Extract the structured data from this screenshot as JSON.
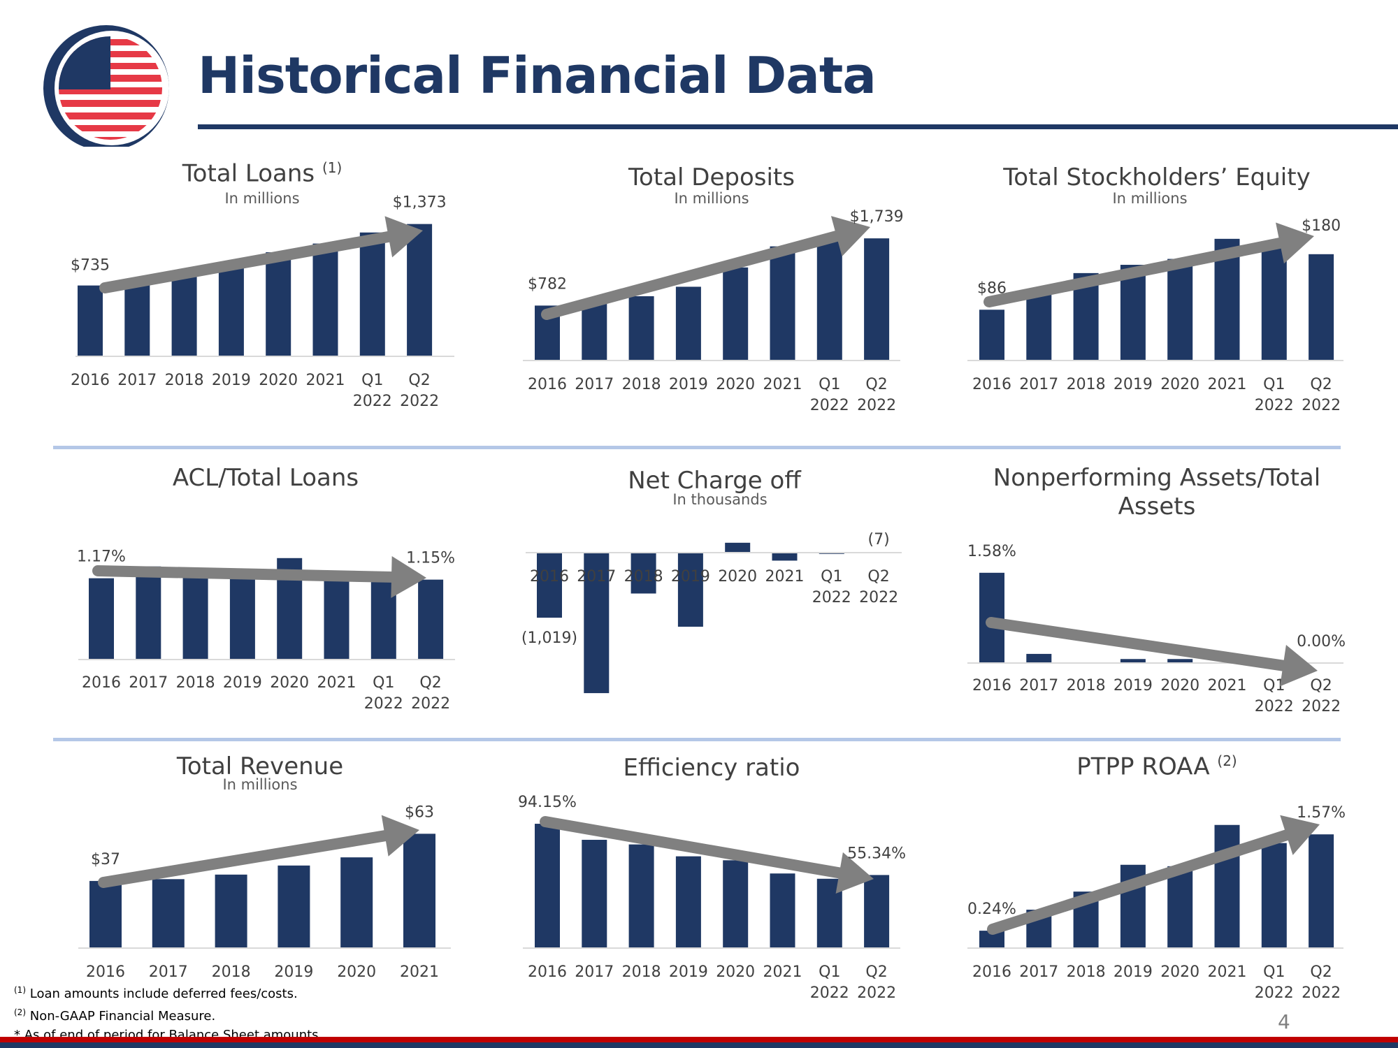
{
  "page": {
    "title": "Historical Financial Data",
    "page_number": "4",
    "colors": {
      "bar": "#1f3864",
      "arrow": "#808080",
      "accent_red": "#c00000",
      "separator": "#b4c7e7"
    }
  },
  "footnotes": [
    {
      "marker": "(1)",
      "text": "Loan amounts include deferred fees/costs."
    },
    {
      "marker": "(2)",
      "text": "Non-GAAP Financial Measure."
    },
    {
      "marker": "*",
      "text": "As of end of period for Balance Sheet amounts."
    }
  ],
  "chart_data": [
    {
      "id": "loans",
      "type": "bar",
      "title": "Total Loans",
      "title_note": "(1)",
      "subtitle": "In millions",
      "categories": [
        "2016",
        "2017",
        "2018",
        "2019",
        "2020",
        "2021",
        "Q1 2022",
        "Q2 2022"
      ],
      "values": [
        735,
        790,
        860,
        960,
        1080,
        1170,
        1285,
        1373
      ],
      "value_labels": [
        "$735",
        "",
        "",
        "",
        "",
        "",
        "",
        "$1,373"
      ],
      "ylim": [
        0,
        1450
      ],
      "trend_arrow": "up",
      "grid": false
    },
    {
      "id": "deposits",
      "type": "bar",
      "title": "Total Deposits",
      "subtitle": "In millions",
      "categories": [
        "2016",
        "2017",
        "2018",
        "2019",
        "2020",
        "2021",
        "Q1 2022",
        "Q2 2022"
      ],
      "values": [
        782,
        830,
        915,
        1050,
        1325,
        1625,
        1735,
        1739
      ],
      "value_labels": [
        "$782",
        "",
        "",
        "",
        "",
        "",
        "",
        "$1,739"
      ],
      "ylim": [
        0,
        1850
      ],
      "trend_arrow": "up",
      "grid": false
    },
    {
      "id": "equity",
      "type": "bar",
      "title": "Total Stockholders’ Equity",
      "subtitle": "In millions",
      "categories": [
        "2016",
        "2017",
        "2018",
        "2019",
        "2020",
        "2021",
        "Q1 2022",
        "Q2 2022"
      ],
      "values": [
        86,
        118,
        148,
        162,
        172,
        206,
        192,
        180
      ],
      "value_labels": [
        "$86",
        "",
        "",
        "",
        "",
        "",
        "",
        "$180"
      ],
      "ylim": [
        0,
        220
      ],
      "trend_arrow": "up",
      "grid": false
    },
    {
      "id": "acl",
      "type": "bar",
      "title": "ACL/Total Loans",
      "categories": [
        "2016",
        "2017",
        "2018",
        "2019",
        "2020",
        "2021",
        "Q1 2022",
        "Q2 2022"
      ],
      "values": [
        1.17,
        1.34,
        1.2,
        1.18,
        1.46,
        1.2,
        1.2,
        1.15
      ],
      "value_labels": [
        "1.17%",
        "",
        "",
        "",
        "",
        "",
        "",
        "1.15%"
      ],
      "ylim": [
        0,
        1.85
      ],
      "trend_arrow": "flat",
      "grid": false
    },
    {
      "id": "nco",
      "type": "bar",
      "title": "Net Charge off",
      "subtitle": "In thousands",
      "categories": [
        "2016",
        "2017",
        "2018",
        "2019",
        "2020",
        "2021",
        "Q1 2022",
        "Q2 2022"
      ],
      "values": [
        -1019,
        -2200,
        -640,
        -1160,
        155,
        -125,
        -20,
        -7
      ],
      "value_labels": [
        "(1,019)",
        "",
        "",
        "",
        "",
        "",
        "",
        "(7)"
      ],
      "ylim": [
        -2300,
        300
      ],
      "trend_arrow": "none",
      "grid": false
    },
    {
      "id": "npa",
      "type": "bar",
      "title": "Nonperforming Assets/Total Assets",
      "categories": [
        "2016",
        "2017",
        "2018",
        "2019",
        "2020",
        "2021",
        "Q1 2022",
        "Q2 2022"
      ],
      "values": [
        1.58,
        0.16,
        0.0,
        0.07,
        0.07,
        0.0,
        0.0,
        0.0
      ],
      "value_labels": [
        "1.58%",
        "",
        "",
        "",
        "",
        "",
        "",
        "0.00%"
      ],
      "ylim": [
        0,
        1.7
      ],
      "trend_arrow": "down",
      "grid": false
    },
    {
      "id": "revenue",
      "type": "bar",
      "title": "Total Revenue",
      "subtitle": "In millions",
      "categories": [
        "2016",
        "2017",
        "2018",
        "2019",
        "2020",
        "2021"
      ],
      "values": [
        37,
        38,
        40.5,
        45.5,
        50,
        63
      ],
      "value_labels": [
        "$37",
        "",
        "",
        "",
        "",
        "$63"
      ],
      "ylim": [
        0,
        72
      ],
      "trend_arrow": "up",
      "grid": false
    },
    {
      "id": "efficiency",
      "type": "bar",
      "title": "Efficiency ratio",
      "categories": [
        "2016",
        "2017",
        "2018",
        "2019",
        "2020",
        "2021",
        "Q1 2022",
        "Q2 2022"
      ],
      "values": [
        94.15,
        82.0,
        78.5,
        69.5,
        66.5,
        56.5,
        52.5,
        55.34
      ],
      "value_labels": [
        "94.15%",
        "",
        "",
        "",
        "",
        "",
        "",
        "55.34%"
      ],
      "ylim": [
        0,
        100
      ],
      "trend_arrow": "down",
      "grid": false
    },
    {
      "id": "ptpp",
      "type": "bar",
      "title": "PTPP ROAA",
      "title_note": "(2)",
      "categories": [
        "2016",
        "2017",
        "2018",
        "2019",
        "2020",
        "2021",
        "Q1 2022",
        "Q2 2022"
      ],
      "values": [
        0.24,
        0.53,
        0.78,
        1.15,
        1.13,
        1.7,
        1.45,
        1.57
      ],
      "value_labels": [
        "0.24%",
        "",
        "",
        "",
        "",
        "",
        "",
        "1.57%"
      ],
      "ylim": [
        0,
        1.9
      ],
      "trend_arrow": "up",
      "grid": false
    }
  ]
}
